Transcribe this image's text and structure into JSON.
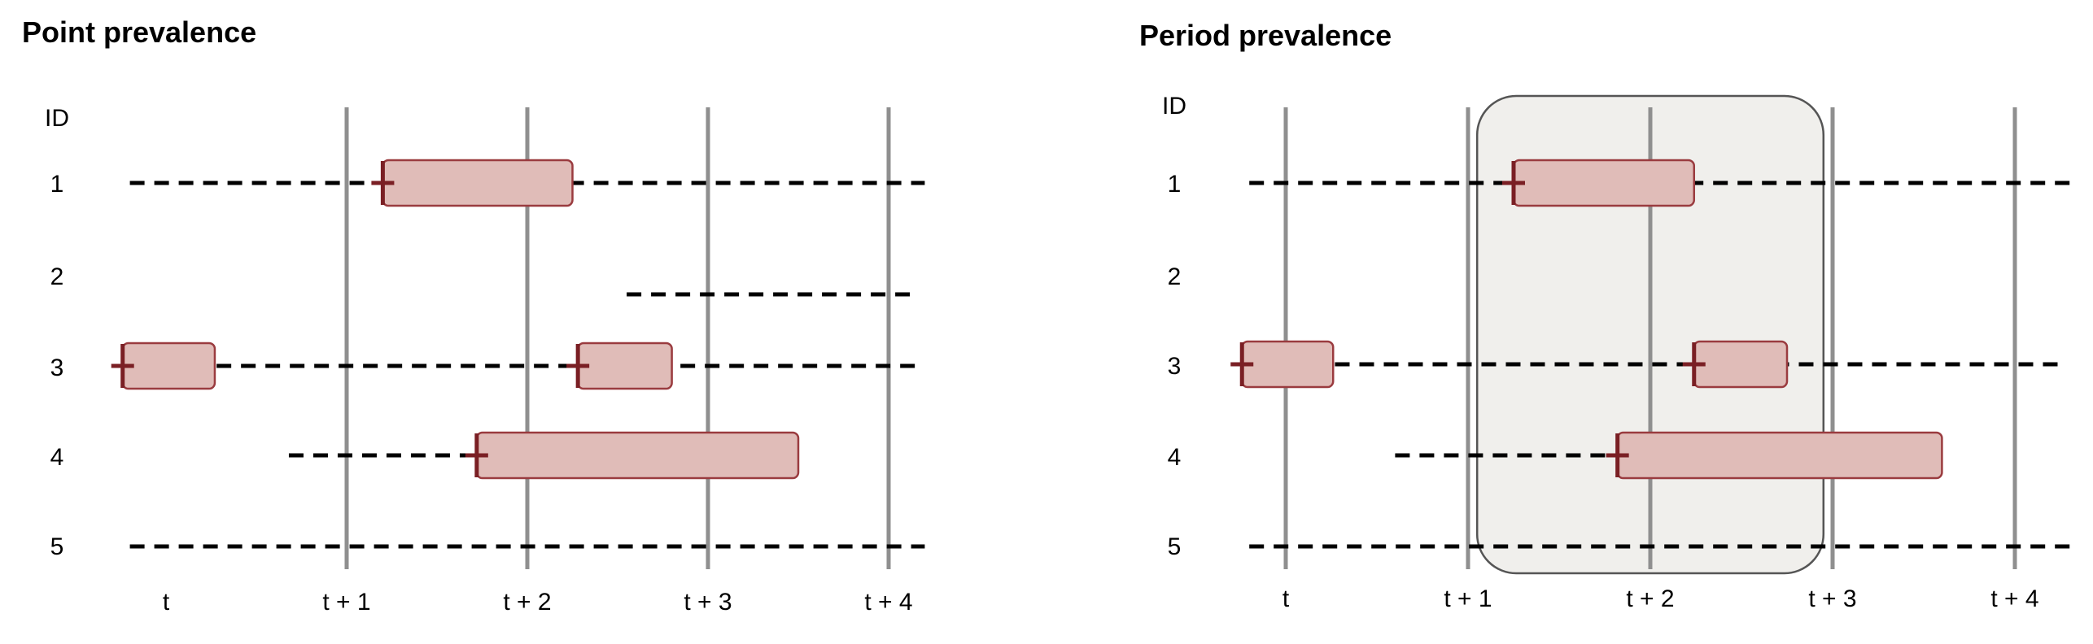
{
  "panels": [
    {
      "title": "Point prevalence",
      "id_header": "ID",
      "subjects": [
        {
          "id": "1",
          "observed": [
            [
              -0.2,
              4.2
            ]
          ],
          "episodes": [
            [
              1.2,
              2.25
            ]
          ],
          "onsets": [
            1.2
          ]
        },
        {
          "id": "2",
          "observed": [
            [
              2.55,
              4.15
            ]
          ],
          "episodes": [],
          "onsets": []
        },
        {
          "id": "3",
          "observed": [
            [
              0.28,
              4.15
            ]
          ],
          "episodes": [
            [
              -0.24,
              0.27
            ],
            [
              2.28,
              2.8
            ]
          ],
          "onsets": [
            -0.24,
            2.28
          ]
        },
        {
          "id": "4",
          "observed": [
            [
              0.68,
              1.8
            ]
          ],
          "episodes": [
            [
              1.72,
              3.5
            ]
          ],
          "onsets": [
            1.72
          ]
        },
        {
          "id": "5",
          "observed": [
            [
              -0.2,
              4.2
            ]
          ],
          "episodes": [],
          "onsets": []
        }
      ],
      "time_labels": [
        "t",
        "t +  1",
        "t +  2",
        "t +  3",
        "t +  4"
      ],
      "reference_lines": [
        1,
        2,
        3,
        4
      ],
      "observation_window": null
    },
    {
      "title": "Period prevalence",
      "id_header": "ID",
      "subjects": [
        {
          "id": "1",
          "observed": [
            [
              -0.2,
              4.3
            ]
          ],
          "episodes": [
            [
              1.25,
              2.24
            ]
          ],
          "onsets": [
            1.25
          ]
        },
        {
          "id": "2",
          "observed": [],
          "episodes": [],
          "onsets": []
        },
        {
          "id": "3",
          "observed": [
            [
              0.27,
              4.25
            ]
          ],
          "episodes": [
            [
              -0.24,
              0.26
            ],
            [
              2.24,
              2.75
            ]
          ],
          "onsets": [
            -0.24,
            2.24
          ]
        },
        {
          "id": "4",
          "observed": [
            [
              0.6,
              1.85
            ]
          ],
          "episodes": [
            [
              1.82,
              3.6
            ]
          ],
          "onsets": [
            1.82
          ]
        },
        {
          "id": "5",
          "observed": [
            [
              -0.2,
              4.3
            ]
          ],
          "episodes": [],
          "onsets": []
        }
      ],
      "time_labels": [
        "t",
        "t +  1",
        "t +  2",
        "t +  3",
        "t +  4"
      ],
      "reference_lines": [
        0,
        1,
        2,
        3,
        4
      ],
      "observation_window": [
        1.05,
        2.95
      ]
    }
  ],
  "colors": {
    "episode_fill": "#e0bcb8",
    "episode_stroke": "#9a3b3f",
    "onset_marker": "#7a1f24",
    "reference_line": "#8f8f8f",
    "window_fill": "#f0efec",
    "window_stroke": "#555555",
    "timeline": "#000000"
  }
}
